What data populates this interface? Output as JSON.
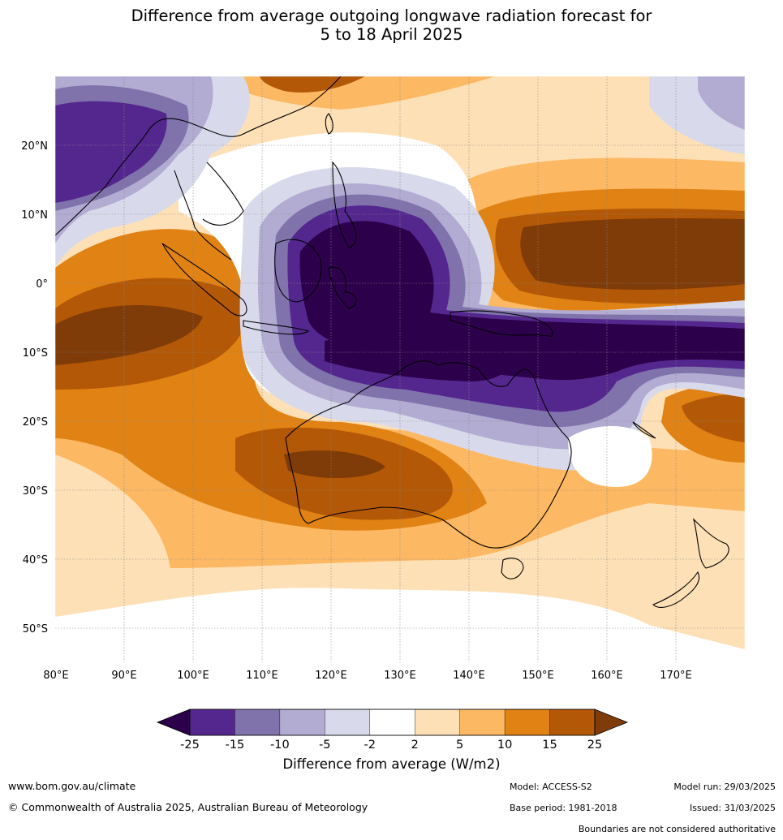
{
  "title": {
    "line1": "Difference from average outgoing longwave radiation forecast for",
    "line2": "5 to 18 April 2025"
  },
  "map": {
    "lat_labels": [
      "20°N",
      "10°N",
      "0°",
      "10°S",
      "20°S",
      "30°S",
      "40°S",
      "50°S"
    ],
    "lon_labels": [
      "80°E",
      "90°E",
      "100°E",
      "110°E",
      "120°E",
      "130°E",
      "140°E",
      "150°E",
      "160°E",
      "170°E"
    ],
    "extent": {
      "lon": [
        80,
        180
      ],
      "lat": [
        -55,
        30
      ]
    }
  },
  "colorbar": {
    "ticks": [
      "-25",
      "-15",
      "-10",
      "-5",
      "-2",
      "2",
      "5",
      "10",
      "15",
      "25"
    ],
    "colors": [
      "#54278f",
      "#8073ac",
      "#b2abd2",
      "#d8daeb",
      "#ffffff",
      "#fee0b6",
      "#fdb863",
      "#e08214",
      "#b35806"
    ],
    "low_extend_color": "#2d004b",
    "high_extend_color": "#7f3b08",
    "label": "Difference from average (W/m2)"
  },
  "footer": {
    "website": "www.bom.gov.au/climate",
    "copyright": "© Commonwealth of Australia 2025, Australian Bureau of Meteorology",
    "model": "Model: ACCESS-S2",
    "base_period": "Base period: 1981-2018",
    "model_run": "Model run: 29/03/2025",
    "issued": "Issued: 31/03/2025",
    "disclaimer": "Boundaries are not considered authoritative"
  }
}
